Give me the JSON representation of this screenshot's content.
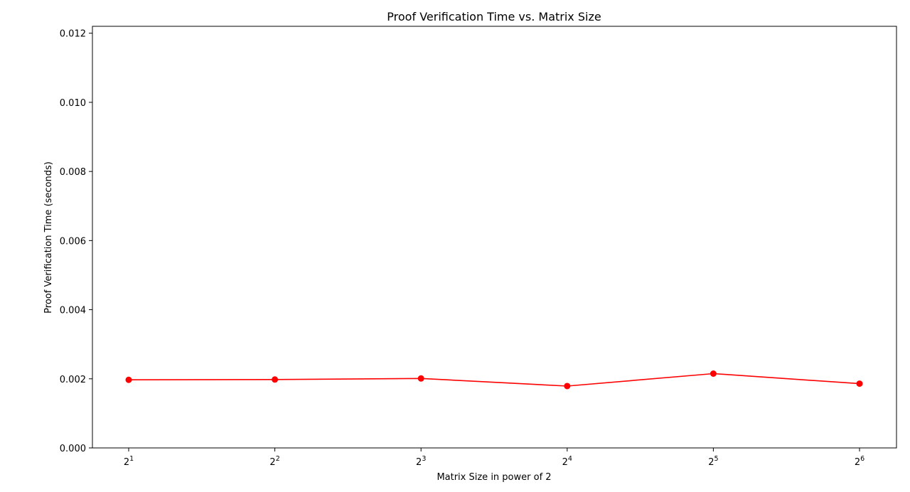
{
  "chart_data": {
    "type": "line",
    "title": "Proof Verification Time vs. Matrix Size",
    "xlabel": "Matrix Size in power of 2",
    "ylabel": "Proof Verification Time (seconds)",
    "x": [
      2,
      4,
      8,
      16,
      32,
      64
    ],
    "x_tick_labels": [
      {
        "base": "2",
        "exp": "1"
      },
      {
        "base": "2",
        "exp": "2"
      },
      {
        "base": "2",
        "exp": "3"
      },
      {
        "base": "2",
        "exp": "4"
      },
      {
        "base": "2",
        "exp": "5"
      },
      {
        "base": "2",
        "exp": "6"
      }
    ],
    "x_scale": "log2",
    "series": [
      {
        "values": [
          0.00197,
          0.00198,
          0.00201,
          0.00179,
          0.00215,
          0.00186
        ],
        "color": "#ff0000",
        "marker": "circle"
      }
    ],
    "ylim": [
      0,
      0.0122
    ],
    "y_ticks": [
      "0.000",
      "0.002",
      "0.004",
      "0.006",
      "0.008",
      "0.010",
      "0.012"
    ],
    "grid": false,
    "legend": "none"
  }
}
